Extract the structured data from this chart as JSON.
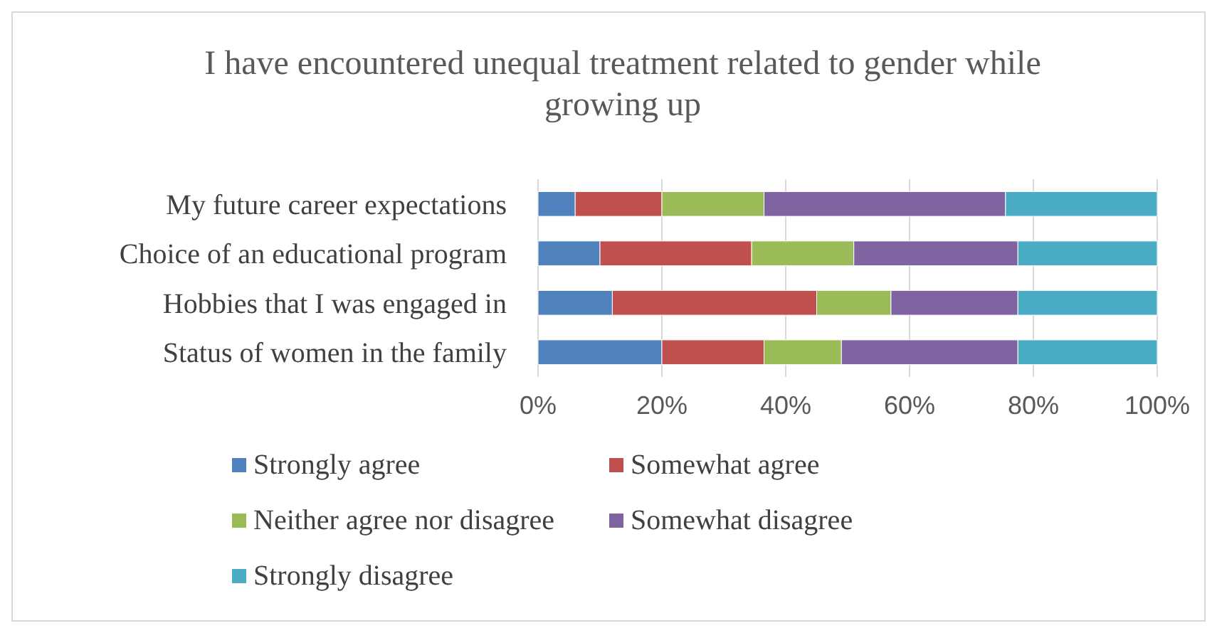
{
  "chart_data": {
    "type": "bar",
    "orientation": "horizontal",
    "stacked": true,
    "title": "I have encountered unequal treatment related to gender while growing up",
    "categories": [
      "My future career expectations",
      "Choice of an educational program",
      "Hobbies that I was engaged in",
      "Status of women in the family"
    ],
    "series": [
      {
        "name": "Strongly agree",
        "color": "#4f81bd",
        "values": [
          6,
          10,
          12,
          20
        ]
      },
      {
        "name": "Somewhat agree",
        "color": "#c0504d",
        "values": [
          14,
          24.5,
          33,
          16.5
        ]
      },
      {
        "name": "Neither agree nor disagree",
        "color": "#9bbb59",
        "values": [
          16.5,
          16.5,
          12,
          12.5
        ]
      },
      {
        "name": "Somewhat disagree",
        "color": "#8064a2",
        "values": [
          39,
          26.5,
          20.5,
          28.5
        ]
      },
      {
        "name": "Strongly disagree",
        "color": "#4bacc6",
        "values": [
          24.5,
          22.5,
          22.5,
          22.5
        ]
      }
    ],
    "xlim": [
      0,
      100
    ],
    "xticks": [
      {
        "value": 0,
        "label": "0%"
      },
      {
        "value": 20,
        "label": "20%"
      },
      {
        "value": 40,
        "label": "40%"
      },
      {
        "value": 60,
        "label": "60%"
      },
      {
        "value": 80,
        "label": "80%"
      },
      {
        "value": 100,
        "label": "100%"
      }
    ],
    "grid": "x",
    "legend": "bottom"
  }
}
